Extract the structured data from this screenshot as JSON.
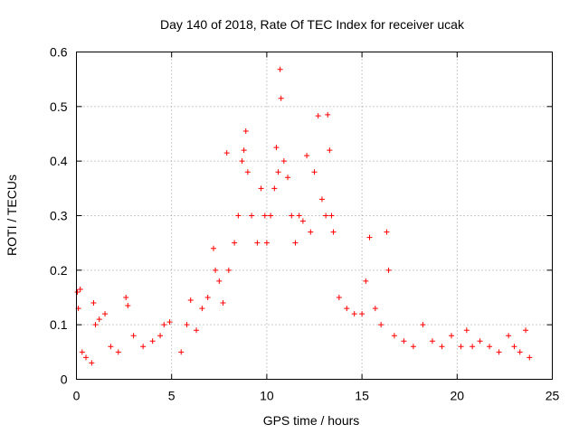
{
  "chart_data": {
    "type": "scatter",
    "title": "Day 140 of 2018, Rate Of TEC Index for receiver ucak",
    "xlabel": "GPS time / hours",
    "ylabel": "ROTI / TECUs",
    "xlim": [
      0,
      25
    ],
    "ylim": [
      0,
      0.6
    ],
    "xticks": [
      "0",
      "5",
      "10",
      "15",
      "20",
      "25"
    ],
    "yticks": [
      "0",
      "0.1",
      "0.2",
      "0.3",
      "0.4",
      "0.5",
      "0.6"
    ],
    "grid": true,
    "marker": "+",
    "color": "#ff0000",
    "series": [
      {
        "name": "",
        "points": [
          [
            0.05,
            0.16
          ],
          [
            0.1,
            0.13
          ],
          [
            0.2,
            0.165
          ],
          [
            0.3,
            0.05
          ],
          [
            0.5,
            0.04
          ],
          [
            0.8,
            0.03
          ],
          [
            0.9,
            0.14
          ],
          [
            1.0,
            0.1
          ],
          [
            1.2,
            0.11
          ],
          [
            1.5,
            0.12
          ],
          [
            1.8,
            0.06
          ],
          [
            2.2,
            0.05
          ],
          [
            2.6,
            0.15
          ],
          [
            2.7,
            0.135
          ],
          [
            3.0,
            0.08
          ],
          [
            3.5,
            0.06
          ],
          [
            4.0,
            0.07
          ],
          [
            4.4,
            0.08
          ],
          [
            4.6,
            0.1
          ],
          [
            4.9,
            0.105
          ],
          [
            5.5,
            0.05
          ],
          [
            5.8,
            0.1
          ],
          [
            6.0,
            0.145
          ],
          [
            6.3,
            0.09
          ],
          [
            6.6,
            0.13
          ],
          [
            6.9,
            0.15
          ],
          [
            7.2,
            0.24
          ],
          [
            7.3,
            0.2
          ],
          [
            7.5,
            0.18
          ],
          [
            7.7,
            0.14
          ],
          [
            7.9,
            0.415
          ],
          [
            8.0,
            0.2
          ],
          [
            8.3,
            0.25
          ],
          [
            8.5,
            0.3
          ],
          [
            8.7,
            0.4
          ],
          [
            8.8,
            0.42
          ],
          [
            8.9,
            0.455
          ],
          [
            9.0,
            0.38
          ],
          [
            9.2,
            0.3
          ],
          [
            9.5,
            0.25
          ],
          [
            9.7,
            0.35
          ],
          [
            9.9,
            0.3
          ],
          [
            10.0,
            0.25
          ],
          [
            10.2,
            0.3
          ],
          [
            10.4,
            0.35
          ],
          [
            10.5,
            0.425
          ],
          [
            10.6,
            0.38
          ],
          [
            10.7,
            0.568
          ],
          [
            10.75,
            0.515
          ],
          [
            10.9,
            0.4
          ],
          [
            11.1,
            0.37
          ],
          [
            11.3,
            0.3
          ],
          [
            11.5,
            0.25
          ],
          [
            11.7,
            0.3
          ],
          [
            11.9,
            0.29
          ],
          [
            12.1,
            0.41
          ],
          [
            12.3,
            0.27
          ],
          [
            12.5,
            0.38
          ],
          [
            12.7,
            0.483
          ],
          [
            12.9,
            0.33
          ],
          [
            13.1,
            0.3
          ],
          [
            13.2,
            0.485
          ],
          [
            13.3,
            0.42
          ],
          [
            13.4,
            0.3
          ],
          [
            13.5,
            0.27
          ],
          [
            13.8,
            0.15
          ],
          [
            14.2,
            0.13
          ],
          [
            14.6,
            0.12
          ],
          [
            15.0,
            0.12
          ],
          [
            15.2,
            0.18
          ],
          [
            15.4,
            0.26
          ],
          [
            15.7,
            0.13
          ],
          [
            16.0,
            0.1
          ],
          [
            16.3,
            0.27
          ],
          [
            16.4,
            0.2
          ],
          [
            16.7,
            0.08
          ],
          [
            17.2,
            0.07
          ],
          [
            17.7,
            0.06
          ],
          [
            18.2,
            0.1
          ],
          [
            18.7,
            0.07
          ],
          [
            19.2,
            0.06
          ],
          [
            19.7,
            0.08
          ],
          [
            20.2,
            0.06
          ],
          [
            20.5,
            0.09
          ],
          [
            20.8,
            0.06
          ],
          [
            21.2,
            0.07
          ],
          [
            21.7,
            0.06
          ],
          [
            22.2,
            0.05
          ],
          [
            22.7,
            0.08
          ],
          [
            23.0,
            0.06
          ],
          [
            23.3,
            0.05
          ],
          [
            23.6,
            0.09
          ],
          [
            23.8,
            0.04
          ]
        ]
      }
    ]
  }
}
